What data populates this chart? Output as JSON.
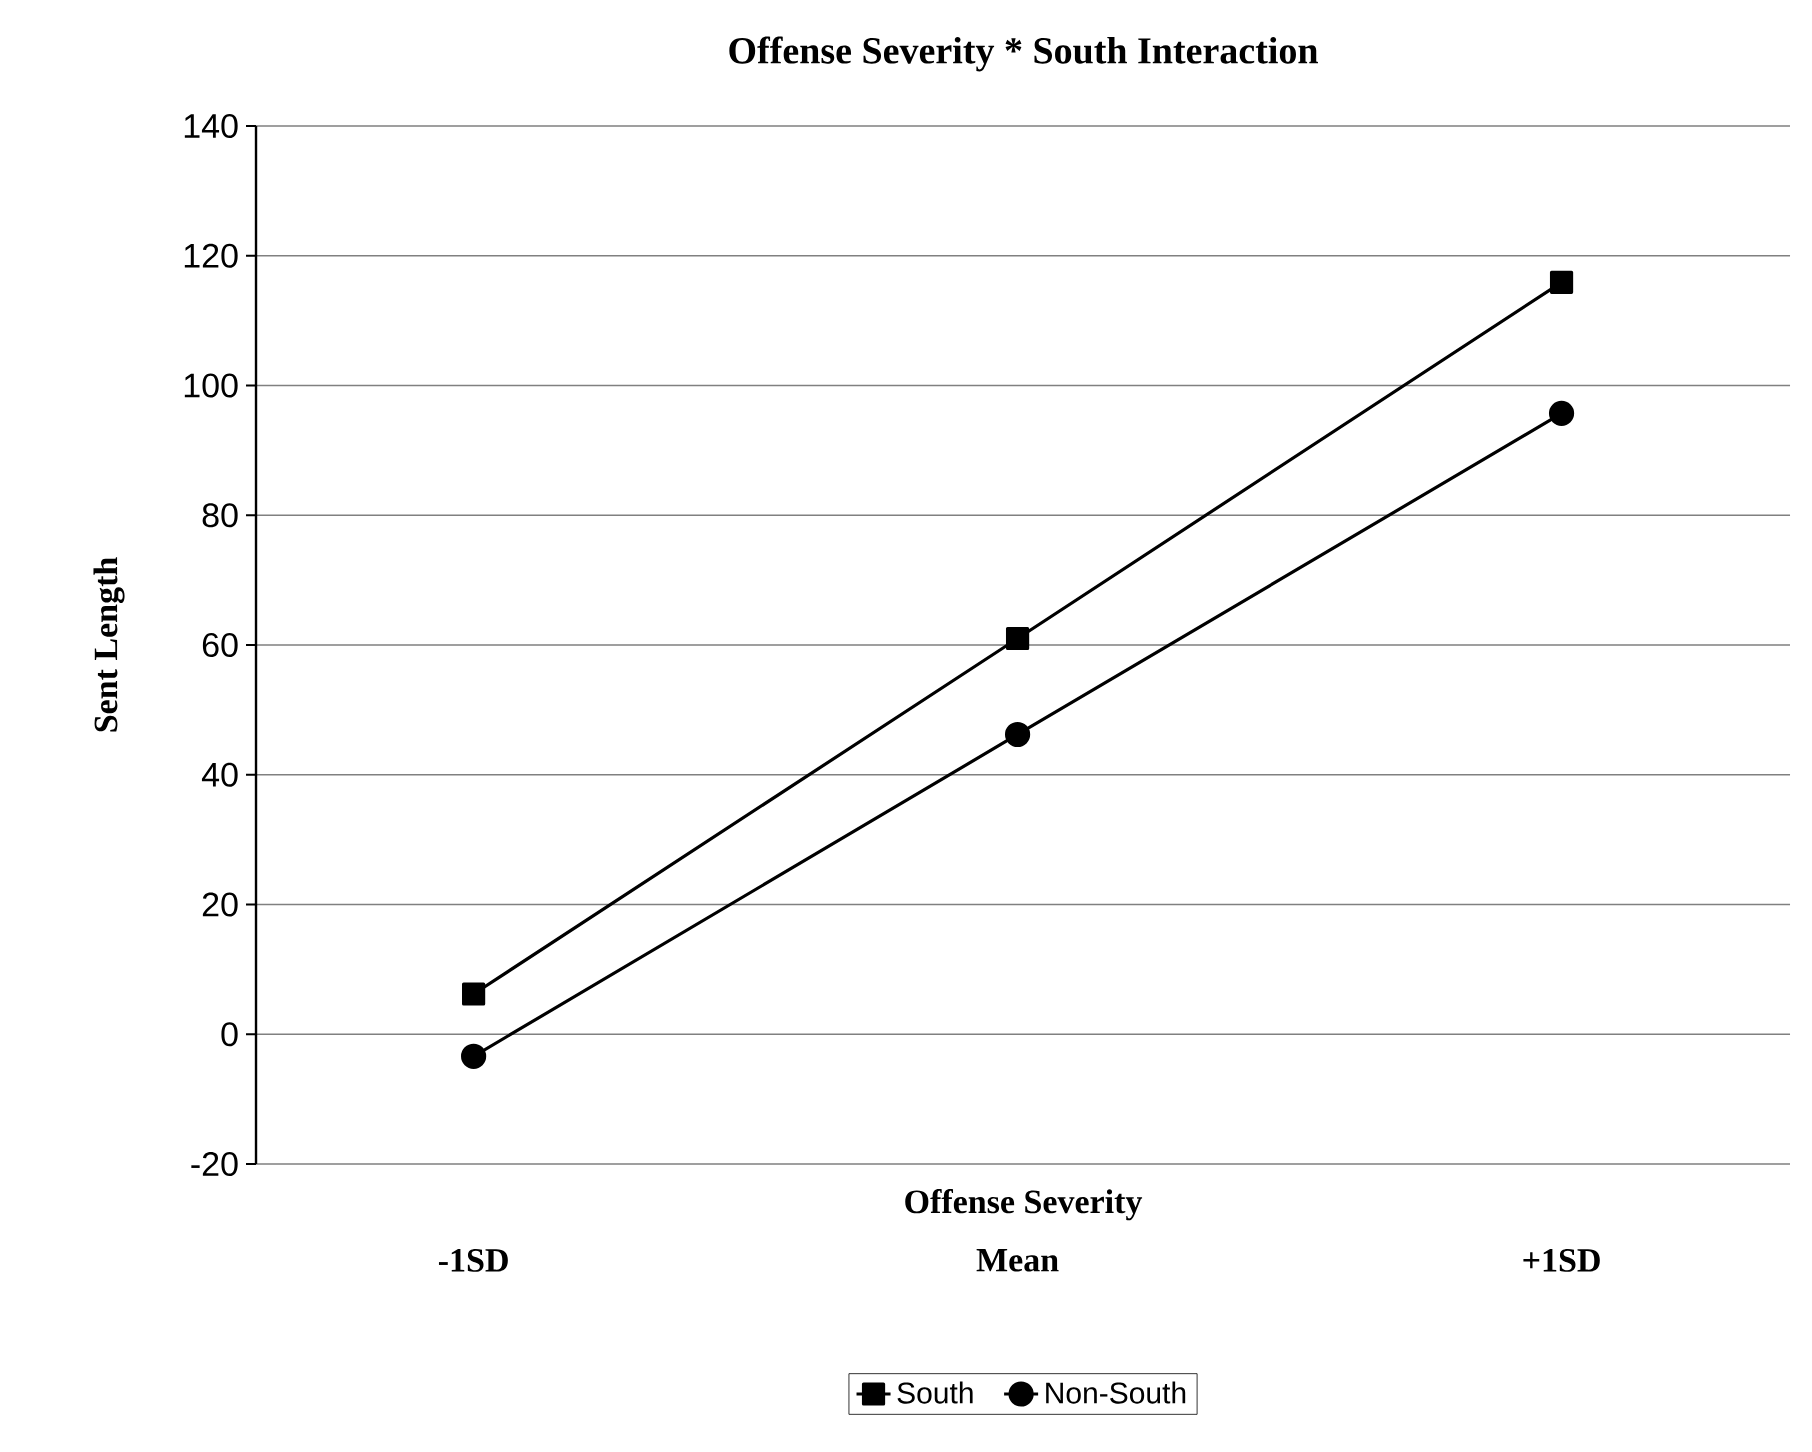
{
  "chart_data": {
    "type": "line",
    "title": "Offense Severity * South Interaction",
    "xlabel": "Offense Severity",
    "ylabel": "Sent Length",
    "categories": [
      "-1SD",
      "Mean",
      "+1SD"
    ],
    "series": [
      {
        "name": "South",
        "color": "#000000",
        "marker": "square",
        "values": [
          6.2,
          61,
          115.9
        ]
      },
      {
        "name": "Non-South",
        "color": "#000000",
        "marker": "circle",
        "values": [
          -3.4,
          46.2,
          95.7
        ]
      }
    ],
    "ylim": [
      -20,
      140
    ],
    "yticks": [
      -20,
      0,
      20,
      40,
      60,
      80,
      100,
      120,
      140
    ],
    "grid": "y",
    "legend": "bottom",
    "line_style": "solid"
  }
}
